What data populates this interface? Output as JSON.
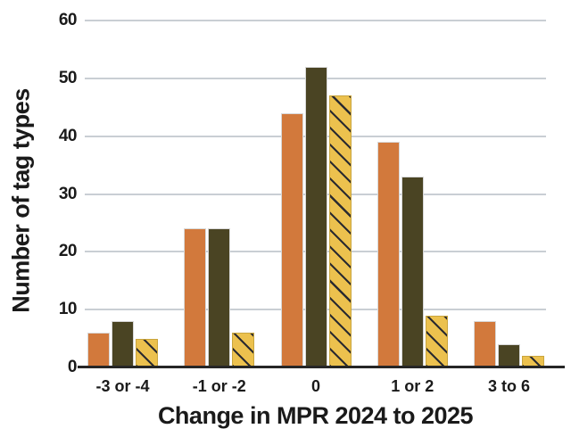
{
  "chart_data": {
    "type": "bar",
    "title": "",
    "xlabel": "Change in MPR 2024 to 2025",
    "ylabel": "Number of tag types",
    "categories": [
      "-3 or -4",
      "-1 or -2",
      "0",
      "1 or 2",
      "3 to 6"
    ],
    "series": [
      {
        "name": "orange",
        "color": "#D2793C",
        "hatch": false,
        "values": [
          6,
          24,
          44,
          39,
          8
        ]
      },
      {
        "name": "dark-olive",
        "color": "#4A4423",
        "hatch": false,
        "values": [
          8,
          24,
          52,
          33,
          4
        ]
      },
      {
        "name": "yellow-hatched",
        "color": "#ECC14E",
        "hatch": true,
        "values": [
          5,
          6,
          47,
          9,
          2
        ]
      }
    ],
    "ylim": [
      0,
      60
    ],
    "yticks": [
      0,
      10,
      20,
      30,
      40,
      50,
      60
    ],
    "grid": "horizontal",
    "legend": "none",
    "colors": {
      "hatch_line": "#2B2B30",
      "gridline": "#C9CED4",
      "axis_line": "#262626",
      "text": "#1A1A1A",
      "background": "#FFFFFF"
    }
  }
}
